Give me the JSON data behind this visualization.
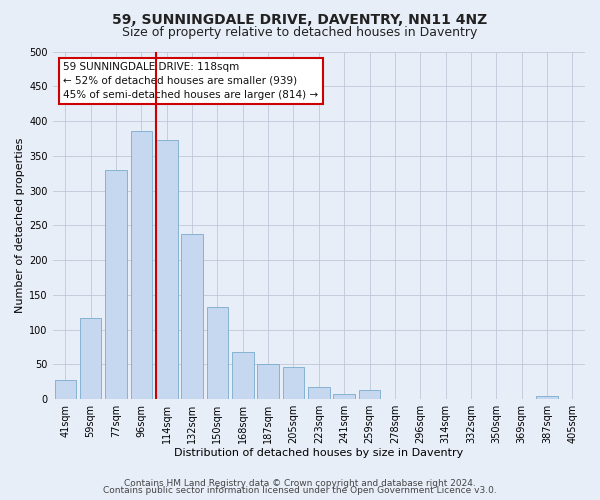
{
  "title": "59, SUNNINGDALE DRIVE, DAVENTRY, NN11 4NZ",
  "subtitle": "Size of property relative to detached houses in Daventry",
  "xlabel": "Distribution of detached houses by size in Daventry",
  "ylabel": "Number of detached properties",
  "bar_labels": [
    "41sqm",
    "59sqm",
    "77sqm",
    "96sqm",
    "114sqm",
    "132sqm",
    "150sqm",
    "168sqm",
    "187sqm",
    "205sqm",
    "223sqm",
    "241sqm",
    "259sqm",
    "278sqm",
    "296sqm",
    "314sqm",
    "332sqm",
    "350sqm",
    "369sqm",
    "387sqm",
    "405sqm"
  ],
  "bar_values": [
    27,
    117,
    330,
    385,
    373,
    237,
    132,
    68,
    50,
    46,
    17,
    8,
    13,
    0,
    0,
    0,
    0,
    0,
    0,
    5,
    0
  ],
  "bar_color": "#c5d8f0",
  "bar_edge_color": "#7aaacc",
  "vline_index": 4,
  "vline_color": "#cc0000",
  "annotation_line1": "59 SUNNINGDALE DRIVE: 118sqm",
  "annotation_line2": "← 52% of detached houses are smaller (939)",
  "annotation_line3": "45% of semi-detached houses are larger (814) →",
  "annotation_box_color": "#ffffff",
  "annotation_box_edge_color": "#cc0000",
  "ylim": [
    0,
    500
  ],
  "yticks": [
    0,
    50,
    100,
    150,
    200,
    250,
    300,
    350,
    400,
    450,
    500
  ],
  "footer_line1": "Contains HM Land Registry data © Crown copyright and database right 2024.",
  "footer_line2": "Contains public sector information licensed under the Open Government Licence v3.0.",
  "bg_color": "#e8eef8",
  "plot_bg_color": "#e8eef8",
  "title_fontsize": 10,
  "subtitle_fontsize": 9,
  "label_fontsize": 8,
  "tick_fontsize": 7,
  "footer_fontsize": 6.5
}
